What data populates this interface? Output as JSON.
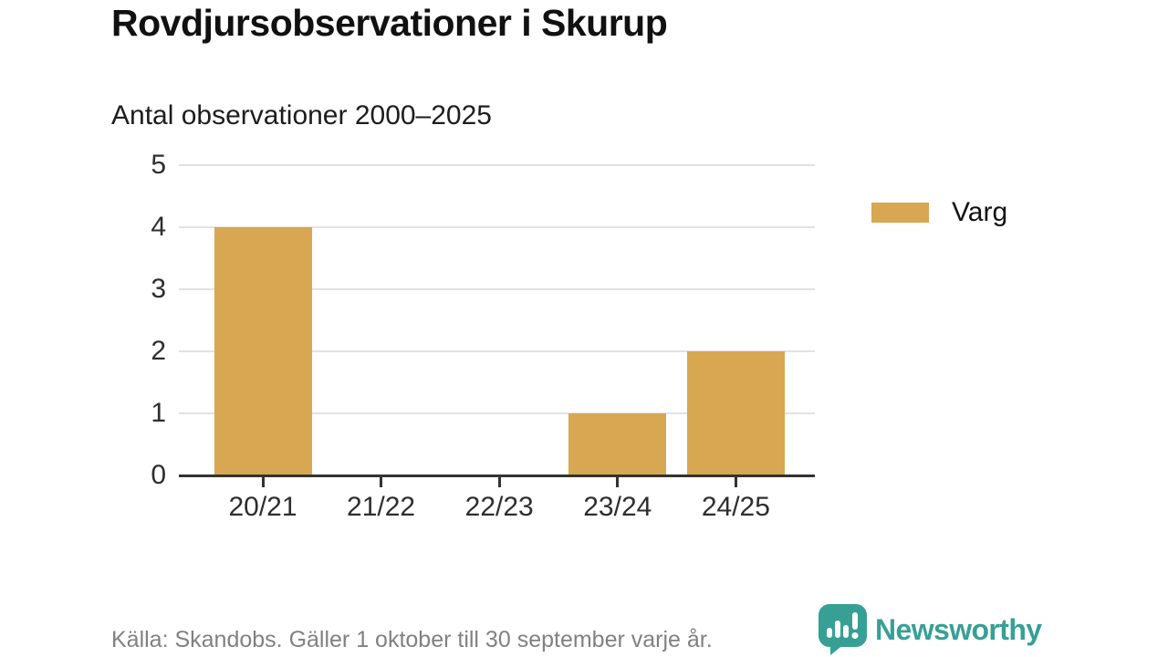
{
  "title": "Rovdjursobservationer i Skurup",
  "subtitle": "Antal observationer 2000–2025",
  "legend": {
    "label": "Varg"
  },
  "footer": {
    "source": "Källa: Skandobs. Gäller 1 oktober till 30 september varje år.",
    "brand": "Newsworthy"
  },
  "icons": {
    "brand": "newsworthy-speech-bubble-bar-chart-icon"
  },
  "colors": {
    "bar": "#d7a851",
    "brand_teal": "#36a095",
    "grid": "#e2e2e2",
    "axis": "#333333",
    "title_text": "#111111",
    "muted_text": "#818181"
  },
  "chart_data": {
    "type": "bar",
    "title": "Rovdjursobservationer i Skurup",
    "subtitle": "Antal observationer 2000–2025",
    "categories": [
      "20/21",
      "21/22",
      "22/23",
      "23/24",
      "24/25"
    ],
    "series": [
      {
        "name": "Varg",
        "values": [
          4,
          0,
          0,
          1,
          2
        ]
      }
    ],
    "xlabel": "",
    "ylabel": "",
    "ylim": [
      0,
      5
    ],
    "yticks": [
      0,
      1,
      2,
      3,
      4,
      5
    ],
    "grid": "horizontal",
    "legend_position": "right"
  }
}
